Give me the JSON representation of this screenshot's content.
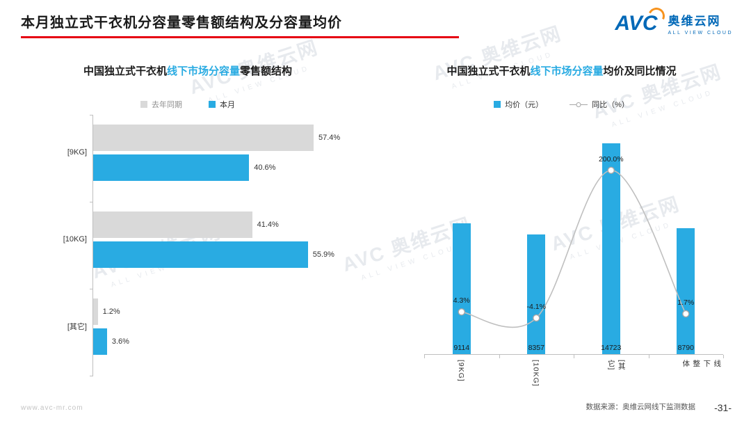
{
  "page": {
    "title": "本月独立式干衣机分容量零售额结构及分容量均价",
    "footer_url": "www.avc-mr.com",
    "footer_source": "数据来源：奥维云网线下监测数据",
    "page_number": "-31-"
  },
  "logo": {
    "avc": "AVC",
    "name": "奥维云网",
    "tagline": "ALL VIEW CLOUD"
  },
  "watermark": {
    "text": "AVC 奥维云网",
    "subtext": "ALL VIEW CLOUD"
  },
  "colors": {
    "accent_blue": "#29ABE2",
    "prev_year_gray": "#D9D9D9",
    "underline_red": "#E60012",
    "line_gray": "#BFBFBF",
    "logo_blue": "#0068B7",
    "logo_orange": "#F7931E"
  },
  "chart_data": [
    {
      "type": "bar",
      "orientation": "horizontal",
      "title_parts": [
        "中国独立式干衣机",
        "线下市场分容量",
        "零售额结构"
      ],
      "categories": [
        "[9KG]",
        "[10KG]",
        "[其它]"
      ],
      "series": [
        {
          "name": "去年同期",
          "color": "#D9D9D9",
          "values": [
            57.4,
            41.4,
            1.2
          ]
        },
        {
          "name": "本月",
          "color": "#29ABE2",
          "values": [
            40.6,
            55.9,
            3.6
          ]
        }
      ],
      "value_suffix": "%",
      "xlim": [
        0,
        65
      ],
      "legend_position": "top",
      "grid": false
    },
    {
      "type": "combo-bar-line",
      "title_parts": [
        "中国独立式干衣机",
        "线下市场分容量",
        "均价及同比情况"
      ],
      "categories": [
        "[9KG]",
        "[10KG]",
        "[其它]",
        "线下整体"
      ],
      "bar_series": {
        "name": "均价（元）",
        "color": "#29ABE2",
        "values": [
          9114,
          8357,
          14723,
          8790
        ]
      },
      "line_series": {
        "name": "同比（%）",
        "color": "#BFBFBF",
        "values": [
          4.3,
          -4.1,
          200.0,
          1.7
        ],
        "labels": [
          "4.3%",
          "-4.1%",
          "200.0%",
          "1.7%"
        ]
      },
      "bar_ylim": [
        0,
        16500
      ],
      "line_ylim": [
        -55,
        272
      ],
      "legend_position": "top",
      "grid": false
    }
  ]
}
